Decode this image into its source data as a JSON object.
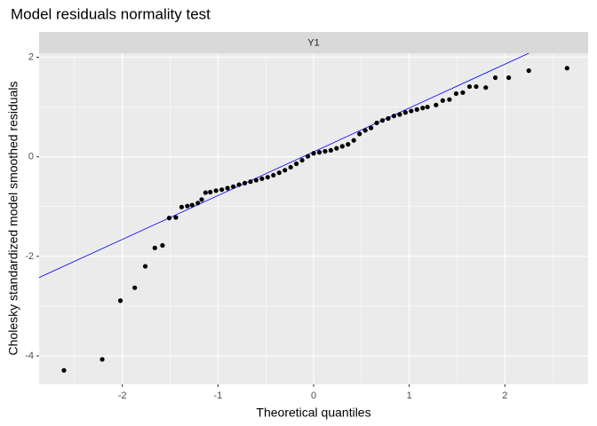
{
  "chart_data": {
    "type": "scatter",
    "title": "Model residuals normality test",
    "panel_label": "Y1",
    "xlabel": "Theoretical quantiles",
    "ylabel": "Cholesky standardized model smoothed residuals",
    "xlim": [
      -2.87,
      2.87
    ],
    "ylim": [
      -4.57,
      2.08
    ],
    "xticks": [
      -2,
      -1,
      0,
      1,
      2
    ],
    "yticks": [
      -4,
      -2,
      0,
      2
    ],
    "x_minor_ticks": [
      -2.5,
      -1.5,
      -0.5,
      0.5,
      1.5,
      2.5
    ],
    "y_minor_ticks": [
      -3,
      -1,
      1
    ],
    "grid": true,
    "point_color": "#000000",
    "reference_line": {
      "slope": 0.88,
      "intercept": 0.1,
      "color": "#0000ff"
    },
    "x": [
      -2.61,
      -2.21,
      -2.02,
      -1.87,
      -1.76,
      -1.66,
      -1.58,
      -1.51,
      -1.44,
      -1.38,
      -1.32,
      -1.27,
      -1.21,
      -1.17,
      -1.13,
      -1.08,
      -1.02,
      -0.96,
      -0.9,
      -0.84,
      -0.78,
      -0.72,
      -0.66,
      -0.6,
      -0.54,
      -0.48,
      -0.42,
      -0.36,
      -0.3,
      -0.24,
      -0.18,
      -0.12,
      -0.06,
      0,
      0.06,
      0.12,
      0.18,
      0.24,
      0.3,
      0.36,
      0.42,
      0.48,
      0.54,
      0.6,
      0.66,
      0.72,
      0.78,
      0.84,
      0.9,
      0.96,
      1.02,
      1.08,
      1.14,
      1.19,
      1.28,
      1.35,
      1.42,
      1.49,
      1.56,
      1.63,
      1.7,
      1.8,
      1.9,
      2.04,
      2.25,
      2.65
    ],
    "values": [
      -4.29,
      -4.07,
      -2.89,
      -2.63,
      -2.2,
      -1.83,
      -1.78,
      -1.23,
      -1.22,
      -1.01,
      -0.99,
      -0.97,
      -0.93,
      -0.86,
      -0.72,
      -0.71,
      -0.68,
      -0.66,
      -0.63,
      -0.6,
      -0.56,
      -0.53,
      -0.5,
      -0.47,
      -0.44,
      -0.41,
      -0.37,
      -0.32,
      -0.27,
      -0.21,
      -0.14,
      -0.07,
      0.01,
      0.07,
      0.09,
      0.11,
      0.13,
      0.17,
      0.21,
      0.25,
      0.33,
      0.46,
      0.53,
      0.58,
      0.68,
      0.73,
      0.77,
      0.82,
      0.85,
      0.89,
      0.92,
      0.95,
      0.98,
      1.0,
      1.04,
      1.13,
      1.15,
      1.27,
      1.29,
      1.41,
      1.41,
      1.39,
      1.59,
      1.59,
      1.73,
      1.78
    ]
  }
}
